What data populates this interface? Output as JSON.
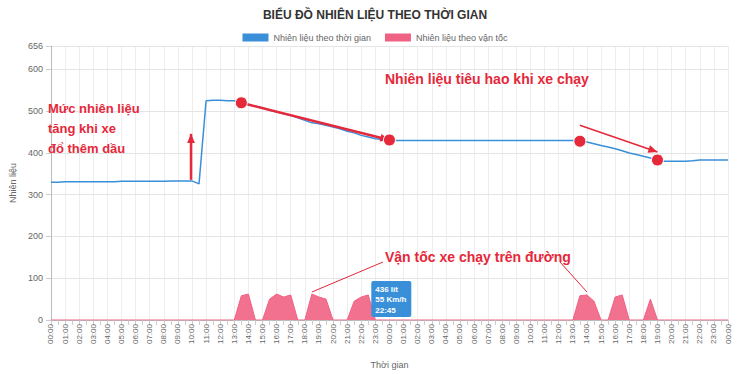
{
  "chart_data": {
    "type": "line",
    "title": "BIỂU ĐỒ NHIÊN LIỆU THEO THỜI GIAN",
    "x_label": "Thời gian",
    "y_label": "Nhiên liệu",
    "categories": [
      "00:00",
      null,
      "01:00",
      null,
      "02:00",
      null,
      "03:00",
      null,
      "04:00",
      null,
      "05:00",
      null,
      "06:00",
      null,
      "07:00",
      null,
      "08:00",
      null,
      "09:00",
      null,
      "10:00",
      null,
      "11:00",
      null,
      "12:00",
      null,
      "13:00",
      null,
      "14:00",
      null,
      "15:00",
      null,
      "16:00",
      null,
      "17:00",
      null,
      "18:00",
      null,
      "19:00",
      null,
      "20:00",
      null,
      "21:00",
      null,
      "22:00",
      null,
      "23:00",
      null,
      "00:00",
      null,
      "01:00",
      null,
      "02:00",
      null,
      "03:00",
      null,
      "04:00",
      null,
      "05:00",
      null,
      "06:00",
      null,
      "07:00",
      null,
      "08:00",
      null,
      "09:00",
      null,
      "10:00",
      null,
      "11:00",
      null,
      "12:00",
      null,
      "13:00",
      null,
      "14:00",
      null,
      "15:00",
      null,
      "16:00",
      null,
      "17:00",
      null,
      "18:00",
      null,
      "19:00",
      null,
      "20:00",
      null,
      "21:00",
      null,
      "22:00",
      null,
      "23:00",
      null,
      "00:00"
    ],
    "series": [
      {
        "name": "Nhiên liệu theo thời gian",
        "color": "#3a8fd9",
        "type": "line",
        "values": [
          330,
          330,
          331,
          331,
          331,
          331,
          331,
          331,
          331,
          331,
          332,
          332,
          332,
          332,
          332,
          332,
          332,
          333,
          333,
          333,
          333,
          326,
          525,
          526,
          526,
          525,
          525,
          520,
          515,
          512,
          508,
          502,
          498,
          494,
          490,
          484,
          478,
          472,
          470,
          466,
          462,
          458,
          452,
          448,
          442,
          438,
          434,
          432,
          431,
          430,
          430,
          430,
          430,
          430,
          430,
          430,
          430,
          430,
          430,
          430,
          430,
          430,
          430,
          430,
          430,
          430,
          430,
          430,
          430,
          430,
          430,
          430,
          430,
          430,
          430,
          428,
          426,
          422,
          418,
          414,
          410,
          405,
          400,
          396,
          392,
          388,
          383,
          380,
          380,
          380,
          380,
          381,
          383,
          383,
          383,
          383,
          383
        ]
      },
      {
        "name": "Nhiên liệu theo vận tốc",
        "color": "#f06283",
        "type": "area",
        "values": [
          0,
          0,
          0,
          0,
          0,
          0,
          0,
          0,
          0,
          0,
          0,
          0,
          0,
          0,
          0,
          0,
          0,
          0,
          0,
          0,
          0,
          0,
          0,
          0,
          0,
          0,
          0,
          58,
          62,
          0,
          0,
          50,
          62,
          55,
          60,
          0,
          0,
          62,
          55,
          50,
          0,
          0,
          0,
          45,
          55,
          60,
          0,
          0,
          0,
          0,
          0,
          0,
          0,
          0,
          0,
          0,
          0,
          0,
          0,
          0,
          0,
          0,
          0,
          0,
          0,
          0,
          0,
          0,
          0,
          0,
          0,
          0,
          0,
          0,
          0,
          58,
          60,
          45,
          0,
          0,
          55,
          60,
          0,
          0,
          0,
          50,
          0,
          0,
          0,
          0,
          0,
          0,
          0,
          0,
          0,
          0,
          0
        ]
      }
    ],
    "ylim": [
      0,
      656
    ],
    "yticks": [
      0,
      100,
      200,
      300,
      400,
      500,
      600,
      656
    ],
    "grid": true,
    "legend": "top",
    "annotations": [
      {
        "lines": [
          "Mức nhiên liệu",
          "tăng khi xe",
          "đổ thêm dầu"
        ]
      },
      {
        "lines": [
          "Nhiên liệu tiêu hao khi xe chạy"
        ]
      },
      {
        "lines": [
          "Vận tốc xe chạy trên đường"
        ]
      },
      {
        "lines": [
          "436 lít",
          "55 Km/h",
          "22:45"
        ]
      }
    ]
  }
}
